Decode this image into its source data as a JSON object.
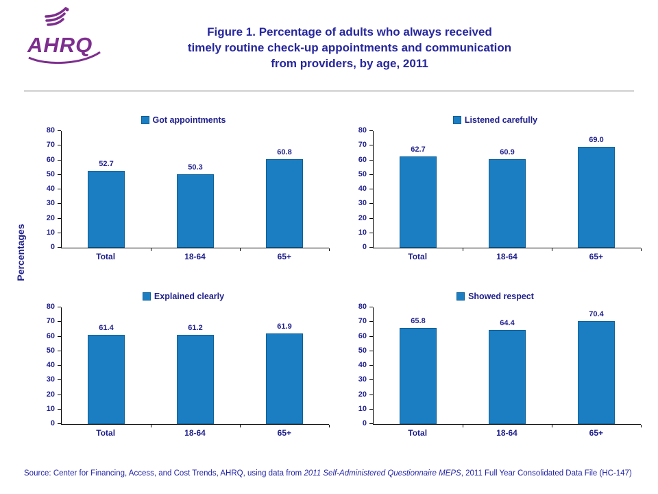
{
  "logo": {
    "text": "AHRQ"
  },
  "title": {
    "lines": [
      "Figure 1. Percentage of adults who always received",
      "timely routine check-up appointments and communication",
      "from providers, by age, 2011"
    ]
  },
  "yaxis_label": "Percentages",
  "colors": {
    "bar": "#1B7EC2",
    "bar_border": "#0E5E96",
    "accent_text": "#1F1F8C",
    "title_text": "#26269E",
    "logo": "#7D2E8E"
  },
  "source": {
    "prefix": "Source: Center for Financing, Access, and Cost Trends, AHRQ, using data from ",
    "italic": "2011 Self-Administered Questionnaire MEPS",
    "suffix": ", 2011 Full Year Consolidated Data File (HC-147)"
  },
  "chart_data": [
    {
      "type": "bar",
      "key": "got-appointments",
      "title": "Got appointments",
      "categories": [
        "Total",
        "18-64",
        "65+"
      ],
      "values": [
        52.7,
        50.3,
        60.8
      ],
      "value_labels": [
        "52.7",
        "50.3",
        "60.8"
      ],
      "xlabel": "",
      "ylabel": "Percentages",
      "ylim": [
        0,
        80
      ],
      "ytick_step": 10,
      "grid": false,
      "legend_position": "top"
    },
    {
      "type": "bar",
      "key": "listened-carefully",
      "title": "Listened carefully",
      "categories": [
        "Total",
        "18-64",
        "65+"
      ],
      "values": [
        62.7,
        60.9,
        69.0
      ],
      "value_labels": [
        "62.7",
        "60.9",
        "69.0"
      ],
      "xlabel": "",
      "ylabel": "Percentages",
      "ylim": [
        0,
        80
      ],
      "ytick_step": 10,
      "grid": false,
      "legend_position": "top"
    },
    {
      "type": "bar",
      "key": "explained-clearly",
      "title": "Explained clearly",
      "categories": [
        "Total",
        "18-64",
        "65+"
      ],
      "values": [
        61.4,
        61.2,
        61.9
      ],
      "value_labels": [
        "61.4",
        "61.2",
        "61.9"
      ],
      "xlabel": "",
      "ylabel": "Percentages",
      "ylim": [
        0,
        80
      ],
      "ytick_step": 10,
      "grid": false,
      "legend_position": "top"
    },
    {
      "type": "bar",
      "key": "showed-respect",
      "title": "Showed respect",
      "categories": [
        "Total",
        "18-64",
        "65+"
      ],
      "values": [
        65.8,
        64.4,
        70.4
      ],
      "value_labels": [
        "65.8",
        "64.4",
        "70.4"
      ],
      "xlabel": "",
      "ylabel": "Percentages",
      "ylim": [
        0,
        80
      ],
      "ytick_step": 10,
      "grid": false,
      "legend_position": "top"
    }
  ]
}
